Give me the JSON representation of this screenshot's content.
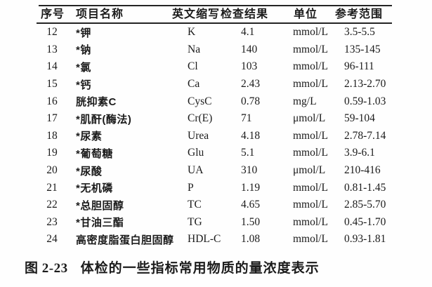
{
  "table": {
    "headers": {
      "no": "序号",
      "name": "项目名称",
      "abbr": "英文缩写",
      "result": "检查结果",
      "unit": "单位",
      "range": "参考范围"
    },
    "rows": [
      {
        "no": "12",
        "name": "*钾",
        "abbr": "K",
        "result": "4.1",
        "unit": "mmol/L",
        "range": "3.5-5.5"
      },
      {
        "no": "13",
        "name": "*钠",
        "abbr": "Na",
        "result": "140",
        "unit": "mmol/L",
        "range": "135-145"
      },
      {
        "no": "14",
        "name": "*氯",
        "abbr": "Cl",
        "result": "103",
        "unit": "mmol/L",
        "range": "96-111"
      },
      {
        "no": "15",
        "name": "*钙",
        "abbr": "Ca",
        "result": "2.43",
        "unit": "mmol/L",
        "range": "2.13-2.70"
      },
      {
        "no": "16",
        "name": "胱抑素C",
        "abbr": "CysC",
        "result": "0.78",
        "unit": "mg/L",
        "range": "0.59-1.03"
      },
      {
        "no": "17",
        "name": "*肌酐(酶法)",
        "abbr": "Cr(E)",
        "result": "71",
        "unit": "μmol/L",
        "range": "59-104"
      },
      {
        "no": "18",
        "name": "*尿素",
        "abbr": "Urea",
        "result": "4.18",
        "unit": "mmol/L",
        "range": "2.78-7.14"
      },
      {
        "no": "19",
        "name": "*葡萄糖",
        "abbr": "Glu",
        "result": "5.1",
        "unit": "mmol/L",
        "range": "3.9-6.1"
      },
      {
        "no": "20",
        "name": "*尿酸",
        "abbr": "UA",
        "result": "310",
        "unit": "μmol/L",
        "range": "210-416"
      },
      {
        "no": "21",
        "name": "*无机磷",
        "abbr": "P",
        "result": "1.19",
        "unit": "mmol/L",
        "range": "0.81-1.45"
      },
      {
        "no": "22",
        "name": "*总胆固醇",
        "abbr": "TC",
        "result": "4.65",
        "unit": "mmol/L",
        "range": "2.85-5.70"
      },
      {
        "no": "23",
        "name": "*甘油三酯",
        "abbr": "TG",
        "result": "1.50",
        "unit": "mmol/L",
        "range": "0.45-1.70"
      },
      {
        "no": "24",
        "name": "高密度脂蛋白胆固醇",
        "abbr": "HDL-C",
        "result": "1.08",
        "unit": "mmol/L",
        "range": "0.93-1.81"
      }
    ]
  },
  "caption": {
    "label": "图 2-23",
    "text": "体检的一些指标常用物质的量浓度表示"
  }
}
